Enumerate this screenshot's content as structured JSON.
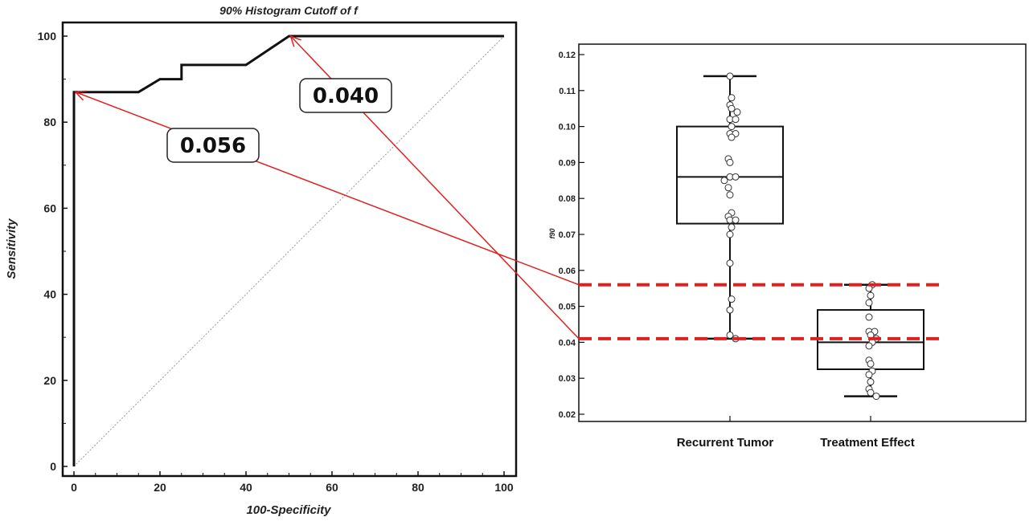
{
  "chart_data": [
    {
      "type": "line",
      "title": "90% Histogram Cutoff of f",
      "xlabel": "100-Specificity",
      "ylabel": "Sensitivity",
      "xlim": [
        0,
        100
      ],
      "ylim": [
        0,
        100
      ],
      "xticks": [
        "0",
        "20",
        "40",
        "60",
        "80",
        "100"
      ],
      "yticks": [
        "0",
        "20",
        "40",
        "60",
        "80",
        "100"
      ],
      "grid": false,
      "series": [
        {
          "x": [
            0,
            0,
            15,
            20,
            25,
            25,
            40,
            50,
            100
          ],
          "y": [
            0,
            87,
            87,
            90,
            90,
            93.3,
            93.3,
            100,
            100
          ]
        }
      ],
      "reference_line": {
        "x": [
          0,
          100
        ],
        "y": [
          0,
          100
        ]
      },
      "annotations": [
        {
          "text": "0.056",
          "x": 0,
          "y": 87
        },
        {
          "text": "0.040",
          "x": 50,
          "y": 100
        }
      ]
    },
    {
      "type": "box",
      "title": "",
      "xlabel": "",
      "ylabel": "f90",
      "ylim": [
        0.02,
        0.12
      ],
      "yticks": [
        "0.02",
        "0.03",
        "0.04",
        "0.05",
        "0.06",
        "0.07",
        "0.08",
        "0.09",
        "0.10",
        "0.11",
        "0.12"
      ],
      "categories": [
        "Recurrent Tumor",
        "Treatment Effect"
      ],
      "boxes": [
        {
          "min": 0.041,
          "q1": 0.073,
          "median": 0.086,
          "q3": 0.1,
          "max": 0.114,
          "points": [
            0.114,
            0.108,
            0.106,
            0.105,
            0.104,
            0.102,
            0.102,
            0.1,
            0.098,
            0.098,
            0.097,
            0.091,
            0.09,
            0.086,
            0.086,
            0.085,
            0.083,
            0.081,
            0.076,
            0.075,
            0.074,
            0.074,
            0.072,
            0.07,
            0.062,
            0.052,
            0.049,
            0.042,
            0.041
          ]
        },
        {
          "min": 0.025,
          "q1": 0.0325,
          "median": 0.04,
          "q3": 0.049,
          "max": 0.056,
          "points": [
            0.056,
            0.055,
            0.053,
            0.051,
            0.047,
            0.043,
            0.043,
            0.042,
            0.041,
            0.04,
            0.039,
            0.035,
            0.034,
            0.032,
            0.031,
            0.029,
            0.027,
            0.026,
            0.025
          ]
        }
      ],
      "cutoff_lines": [
        0.056,
        0.041
      ],
      "cutoff_color": "#e02020"
    }
  ],
  "colors": {
    "arrow": "#e02020",
    "cutoff": "#e02020",
    "curve": "#111111"
  }
}
